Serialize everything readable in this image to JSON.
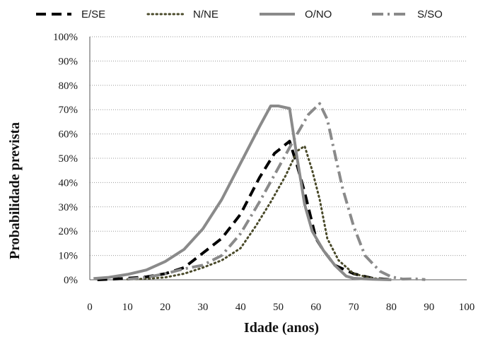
{
  "chart_data": {
    "type": "line",
    "title": "",
    "xlabel": "Idade (anos)",
    "ylabel": "Probabilidade prevista",
    "xlim": [
      0,
      100
    ],
    "ylim": [
      0,
      100
    ],
    "x_ticks": [
      0,
      10,
      20,
      30,
      40,
      50,
      60,
      70,
      80,
      90,
      100
    ],
    "y_ticks": [
      0,
      10,
      20,
      30,
      40,
      50,
      60,
      70,
      80,
      90,
      100
    ],
    "x_tick_labels": [
      "0",
      "10",
      "20",
      "30",
      "40",
      "50",
      "60",
      "70",
      "80",
      "90",
      "100"
    ],
    "y_tick_labels": [
      "0%",
      "10%",
      "20%",
      "30%",
      "40%",
      "50%",
      "60%",
      "70%",
      "80%",
      "90%",
      "100%"
    ],
    "grid": "horizontal",
    "legend": "top",
    "series": [
      {
        "name": "E/SE",
        "color": "#000000",
        "style": "dashed",
        "points": [
          [
            2,
            0
          ],
          [
            5,
            0.2
          ],
          [
            10,
            0.6
          ],
          [
            15,
            1.2
          ],
          [
            20,
            2.5
          ],
          [
            25,
            5
          ],
          [
            30,
            11
          ],
          [
            35,
            17
          ],
          [
            40,
            27
          ],
          [
            45,
            42
          ],
          [
            49,
            52
          ],
          [
            53,
            57
          ],
          [
            55,
            47
          ],
          [
            57,
            36
          ],
          [
            60,
            17
          ],
          [
            62,
            12
          ],
          [
            65,
            6
          ],
          [
            70,
            2.5
          ],
          [
            75,
            0.6
          ],
          [
            80,
            0.1
          ]
        ]
      },
      {
        "name": "N/NE",
        "color": "#4a4a2a",
        "style": "dotted",
        "points": [
          [
            10,
            0.2
          ],
          [
            15,
            0.4
          ],
          [
            20,
            1
          ],
          [
            25,
            2.5
          ],
          [
            30,
            5
          ],
          [
            35,
            8
          ],
          [
            40,
            13
          ],
          [
            44,
            22
          ],
          [
            48,
            32
          ],
          [
            52,
            43
          ],
          [
            55,
            53
          ],
          [
            57,
            55
          ],
          [
            59,
            45
          ],
          [
            61,
            33
          ],
          [
            63,
            17
          ],
          [
            66,
            8
          ],
          [
            70,
            2.5
          ],
          [
            75,
            0.6
          ],
          [
            80,
            0.1
          ]
        ]
      },
      {
        "name": "O/NO",
        "color": "#8a8a8a",
        "style": "solid",
        "points": [
          [
            1,
            0.5
          ],
          [
            5,
            1
          ],
          [
            10,
            2.2
          ],
          [
            15,
            4
          ],
          [
            20,
            7.5
          ],
          [
            25,
            12.5
          ],
          [
            30,
            21
          ],
          [
            35,
            33
          ],
          [
            40,
            48
          ],
          [
            45,
            63
          ],
          [
            48,
            71.5
          ],
          [
            50,
            71.5
          ],
          [
            53,
            70.5
          ],
          [
            55,
            50
          ],
          [
            57,
            31
          ],
          [
            59,
            20
          ],
          [
            62,
            12
          ],
          [
            65,
            6
          ],
          [
            68,
            1.5
          ],
          [
            70,
            0.6
          ],
          [
            75,
            0.2
          ],
          [
            80,
            0
          ]
        ]
      },
      {
        "name": "S/SO",
        "color": "#8a8a8a",
        "style": "dashdot",
        "points": [
          [
            10,
            0.2
          ],
          [
            15,
            1
          ],
          [
            20,
            2.5
          ],
          [
            25,
            4.5
          ],
          [
            30,
            6
          ],
          [
            35,
            10
          ],
          [
            40,
            19
          ],
          [
            45,
            32
          ],
          [
            50,
            46
          ],
          [
            55,
            60
          ],
          [
            58,
            68
          ],
          [
            61,
            72.5
          ],
          [
            63,
            66
          ],
          [
            65,
            52
          ],
          [
            67,
            38
          ],
          [
            70,
            22
          ],
          [
            73,
            10
          ],
          [
            77,
            3.5
          ],
          [
            80,
            1.2
          ],
          [
            83,
            0.3
          ],
          [
            86,
            0.4
          ],
          [
            89,
            0.1
          ]
        ]
      }
    ]
  }
}
